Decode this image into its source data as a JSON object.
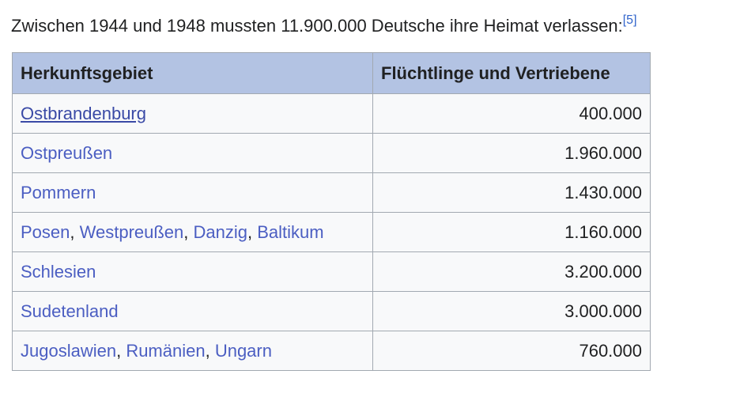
{
  "intro": {
    "text": "Zwischen 1944 und 1948 mussten 11.900.000 Deutsche ihre Heimat verlassen:",
    "footnote": "[5]"
  },
  "table": {
    "headers": [
      "Herkunftsgebiet",
      "Flüchtlinge und Vertriebene"
    ],
    "rows": [
      {
        "regions": [
          "Ostbrandenburg"
        ],
        "count": "400.000"
      },
      {
        "regions": [
          "Ostpreußen"
        ],
        "count": "1.960.000"
      },
      {
        "regions": [
          "Pommern"
        ],
        "count": "1.430.000"
      },
      {
        "regions": [
          "Posen",
          "Westpreußen",
          "Danzig",
          "Baltikum"
        ],
        "count": "1.160.000"
      },
      {
        "regions": [
          "Schlesien"
        ],
        "count": "3.200.000"
      },
      {
        "regions": [
          "Sudetenland"
        ],
        "count": "3.000.000"
      },
      {
        "regions": [
          "Jugoslawien",
          "Rumänien",
          "Ungarn"
        ],
        "count": "760.000"
      }
    ]
  },
  "colors": {
    "header_bg": "#b3c3e3",
    "cell_bg": "#f8f9fa",
    "border": "#a2a9b1",
    "link": "#4b5ec2",
    "text": "#202122"
  }
}
